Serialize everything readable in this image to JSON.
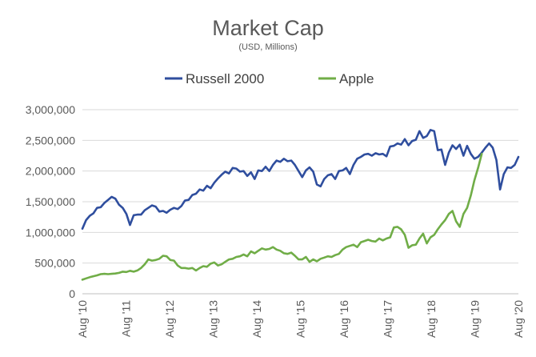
{
  "chart_data": {
    "type": "line",
    "title": "Market Cap",
    "subtitle": "(USD, Millions)",
    "xlabel": "",
    "ylabel": "",
    "ylim": [
      0,
      3000000
    ],
    "y_ticks": [
      0,
      500000,
      1000000,
      1500000,
      2000000,
      2500000,
      3000000
    ],
    "y_tick_labels": [
      "0",
      "500,000",
      "1,000,000",
      "1,500,000",
      "2,000,000",
      "2,500,000",
      "3,000,000"
    ],
    "x_ticks": [
      "Aug '10",
      "Aug '11",
      "Aug '12",
      "Aug '13",
      "Aug '14",
      "Aug '15",
      "Aug '16",
      "Aug '17",
      "Aug '18",
      "Aug '19",
      "Aug '20"
    ],
    "x_range_years": [
      2010,
      2020
    ],
    "x_unit": "years since Aug 2010",
    "grid": "horizontal",
    "legend_position": "top",
    "series": [
      {
        "name": "Russell 2000",
        "color": "#2F4E9E",
        "points": [
          [
            0.0,
            1060000
          ],
          [
            0.1,
            1200000
          ],
          [
            0.2,
            1270000
          ],
          [
            0.3,
            1310000
          ],
          [
            0.4,
            1400000
          ],
          [
            0.5,
            1410000
          ],
          [
            0.6,
            1480000
          ],
          [
            0.7,
            1530000
          ],
          [
            0.8,
            1580000
          ],
          [
            0.9,
            1550000
          ],
          [
            1.0,
            1450000
          ],
          [
            1.1,
            1400000
          ],
          [
            1.2,
            1300000
          ],
          [
            1.3,
            1120000
          ],
          [
            1.4,
            1280000
          ],
          [
            1.5,
            1290000
          ],
          [
            1.6,
            1290000
          ],
          [
            1.7,
            1360000
          ],
          [
            1.8,
            1400000
          ],
          [
            1.9,
            1440000
          ],
          [
            2.0,
            1420000
          ],
          [
            2.1,
            1340000
          ],
          [
            2.2,
            1350000
          ],
          [
            2.3,
            1320000
          ],
          [
            2.4,
            1370000
          ],
          [
            2.5,
            1400000
          ],
          [
            2.6,
            1380000
          ],
          [
            2.7,
            1430000
          ],
          [
            2.8,
            1520000
          ],
          [
            2.9,
            1530000
          ],
          [
            3.0,
            1610000
          ],
          [
            3.1,
            1630000
          ],
          [
            3.2,
            1700000
          ],
          [
            3.3,
            1680000
          ],
          [
            3.4,
            1760000
          ],
          [
            3.5,
            1720000
          ],
          [
            3.6,
            1810000
          ],
          [
            3.7,
            1880000
          ],
          [
            3.8,
            1940000
          ],
          [
            3.9,
            1990000
          ],
          [
            4.0,
            1960000
          ],
          [
            4.1,
            2050000
          ],
          [
            4.2,
            2040000
          ],
          [
            4.3,
            1990000
          ],
          [
            4.4,
            2000000
          ],
          [
            4.5,
            1920000
          ],
          [
            4.6,
            1980000
          ],
          [
            4.7,
            1870000
          ],
          [
            4.8,
            2010000
          ],
          [
            4.9,
            2000000
          ],
          [
            5.0,
            2070000
          ],
          [
            5.1,
            2000000
          ],
          [
            5.2,
            2100000
          ],
          [
            5.3,
            2170000
          ],
          [
            5.4,
            2150000
          ],
          [
            5.5,
            2200000
          ],
          [
            5.6,
            2160000
          ],
          [
            5.7,
            2170000
          ],
          [
            5.8,
            2100000
          ],
          [
            5.9,
            2000000
          ],
          [
            6.0,
            1900000
          ],
          [
            6.1,
            2010000
          ],
          [
            6.2,
            2060000
          ],
          [
            6.3,
            1990000
          ],
          [
            6.4,
            1780000
          ],
          [
            6.5,
            1750000
          ],
          [
            6.6,
            1870000
          ],
          [
            6.7,
            1930000
          ],
          [
            6.8,
            1950000
          ],
          [
            6.9,
            1870000
          ],
          [
            7.0,
            2000000
          ],
          [
            7.1,
            2010000
          ],
          [
            7.2,
            2050000
          ],
          [
            7.3,
            1950000
          ],
          [
            7.4,
            2100000
          ],
          [
            7.5,
            2200000
          ],
          [
            7.6,
            2230000
          ],
          [
            7.7,
            2270000
          ],
          [
            7.8,
            2280000
          ],
          [
            7.9,
            2250000
          ],
          [
            8.0,
            2290000
          ],
          [
            8.1,
            2270000
          ],
          [
            8.2,
            2280000
          ],
          [
            8.3,
            2240000
          ],
          [
            8.4,
            2400000
          ],
          [
            8.5,
            2410000
          ],
          [
            8.6,
            2450000
          ],
          [
            8.7,
            2430000
          ],
          [
            8.8,
            2520000
          ],
          [
            8.9,
            2420000
          ],
          [
            9.0,
            2490000
          ],
          [
            9.1,
            2510000
          ],
          [
            9.2,
            2650000
          ],
          [
            9.3,
            2540000
          ],
          [
            9.4,
            2570000
          ],
          [
            9.5,
            2670000
          ],
          [
            9.6,
            2650000
          ],
          [
            9.7,
            2340000
          ],
          [
            9.8,
            2350000
          ],
          [
            9.9,
            2100000
          ],
          [
            10.0,
            2300000
          ],
          [
            10.1,
            2420000
          ],
          [
            10.2,
            2360000
          ],
          [
            10.3,
            2430000
          ],
          [
            10.4,
            2250000
          ],
          [
            10.5,
            2410000
          ],
          [
            10.6,
            2280000
          ],
          [
            10.7,
            2200000
          ],
          [
            10.8,
            2230000
          ],
          [
            10.9,
            2300000
          ],
          [
            11.0,
            2380000
          ],
          [
            11.1,
            2450000
          ],
          [
            11.2,
            2380000
          ],
          [
            11.3,
            2180000
          ],
          [
            11.4,
            1700000
          ],
          [
            11.5,
            1950000
          ],
          [
            11.6,
            2060000
          ],
          [
            11.7,
            2050000
          ],
          [
            11.8,
            2100000
          ],
          [
            11.9,
            2230000
          ]
        ]
      },
      {
        "name": "Apple",
        "color": "#70AD47",
        "points": [
          [
            0.0,
            230000
          ],
          [
            0.1,
            250000
          ],
          [
            0.2,
            270000
          ],
          [
            0.3,
            285000
          ],
          [
            0.4,
            300000
          ],
          [
            0.5,
            320000
          ],
          [
            0.6,
            325000
          ],
          [
            0.7,
            320000
          ],
          [
            0.8,
            325000
          ],
          [
            0.9,
            330000
          ],
          [
            1.0,
            340000
          ],
          [
            1.1,
            360000
          ],
          [
            1.2,
            355000
          ],
          [
            1.3,
            375000
          ],
          [
            1.4,
            360000
          ],
          [
            1.5,
            380000
          ],
          [
            1.6,
            420000
          ],
          [
            1.7,
            480000
          ],
          [
            1.8,
            560000
          ],
          [
            1.9,
            540000
          ],
          [
            2.0,
            550000
          ],
          [
            2.1,
            570000
          ],
          [
            2.2,
            620000
          ],
          [
            2.3,
            610000
          ],
          [
            2.4,
            550000
          ],
          [
            2.5,
            540000
          ],
          [
            2.6,
            460000
          ],
          [
            2.7,
            420000
          ],
          [
            2.8,
            420000
          ],
          [
            2.9,
            410000
          ],
          [
            3.0,
            420000
          ],
          [
            3.1,
            380000
          ],
          [
            3.2,
            420000
          ],
          [
            3.3,
            450000
          ],
          [
            3.4,
            440000
          ],
          [
            3.5,
            490000
          ],
          [
            3.6,
            510000
          ],
          [
            3.7,
            460000
          ],
          [
            3.8,
            480000
          ],
          [
            3.9,
            520000
          ],
          [
            4.0,
            560000
          ],
          [
            4.1,
            570000
          ],
          [
            4.2,
            600000
          ],
          [
            4.3,
            610000
          ],
          [
            4.4,
            640000
          ],
          [
            4.5,
            610000
          ],
          [
            4.6,
            690000
          ],
          [
            4.7,
            660000
          ],
          [
            4.8,
            700000
          ],
          [
            4.9,
            740000
          ],
          [
            5.0,
            720000
          ],
          [
            5.1,
            730000
          ],
          [
            5.2,
            760000
          ],
          [
            5.3,
            720000
          ],
          [
            5.4,
            700000
          ],
          [
            5.5,
            660000
          ],
          [
            5.6,
            650000
          ],
          [
            5.7,
            670000
          ],
          [
            5.8,
            620000
          ],
          [
            5.9,
            560000
          ],
          [
            6.0,
            560000
          ],
          [
            6.1,
            600000
          ],
          [
            6.2,
            520000
          ],
          [
            6.3,
            560000
          ],
          [
            6.4,
            530000
          ],
          [
            6.5,
            570000
          ],
          [
            6.6,
            590000
          ],
          [
            6.7,
            610000
          ],
          [
            6.8,
            600000
          ],
          [
            6.9,
            630000
          ],
          [
            7.0,
            650000
          ],
          [
            7.1,
            720000
          ],
          [
            7.2,
            760000
          ],
          [
            7.3,
            780000
          ],
          [
            7.4,
            800000
          ],
          [
            7.5,
            760000
          ],
          [
            7.6,
            840000
          ],
          [
            7.7,
            860000
          ],
          [
            7.8,
            880000
          ],
          [
            7.9,
            860000
          ],
          [
            8.0,
            850000
          ],
          [
            8.1,
            900000
          ],
          [
            8.2,
            870000
          ],
          [
            8.3,
            900000
          ],
          [
            8.4,
            920000
          ],
          [
            8.5,
            1080000
          ],
          [
            8.6,
            1090000
          ],
          [
            8.7,
            1050000
          ],
          [
            8.8,
            960000
          ],
          [
            8.9,
            750000
          ],
          [
            9.0,
            790000
          ],
          [
            9.1,
            800000
          ],
          [
            9.2,
            900000
          ],
          [
            9.3,
            980000
          ],
          [
            9.4,
            820000
          ],
          [
            9.5,
            920000
          ],
          [
            9.6,
            960000
          ],
          [
            9.7,
            1050000
          ],
          [
            9.8,
            1130000
          ],
          [
            9.9,
            1200000
          ],
          [
            10.0,
            1300000
          ],
          [
            10.1,
            1350000
          ],
          [
            10.2,
            1180000
          ],
          [
            10.3,
            1090000
          ],
          [
            10.4,
            1300000
          ],
          [
            10.5,
            1400000
          ],
          [
            10.6,
            1600000
          ],
          [
            10.7,
            1850000
          ],
          [
            10.8,
            2050000
          ],
          [
            10.9,
            2280000
          ]
        ]
      }
    ]
  }
}
